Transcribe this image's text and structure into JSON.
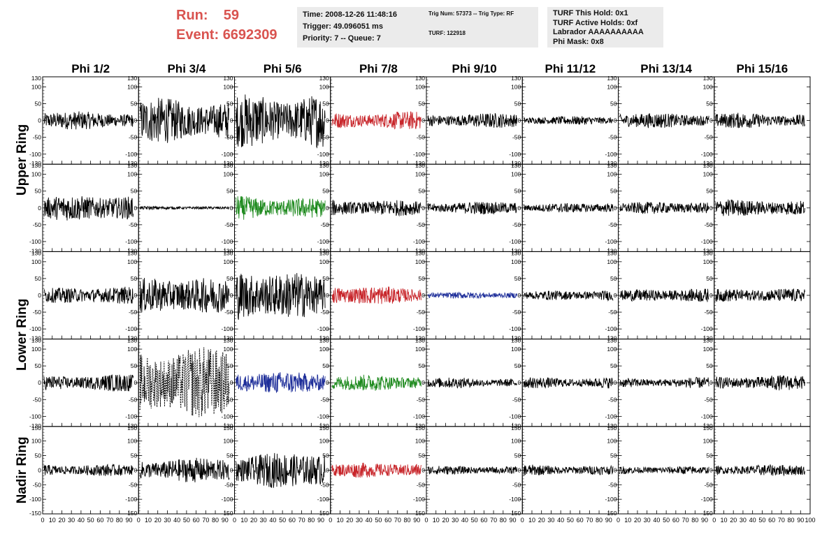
{
  "header": {
    "run_label": "Run:",
    "run_value": "59",
    "event_label": "Event:",
    "event_value": "6692309",
    "header_color": "#d9534f"
  },
  "info_boxes": [
    {
      "lines": [
        "Time: 2008-12-26 11:48:16",
        "Trigger: 49.096051 ms",
        "Priority: 7 -- Queue: 7"
      ]
    },
    {
      "lines": [
        "Trig Num: 57373 -- Trig Type: RF",
        "",
        "TURF: 122918"
      ]
    },
    {
      "lines": [
        "TURF This Hold: 0x1",
        "TURF Active Holds: 0xf",
        "Labrador AAAAAAAAAA",
        "Phi Mask: 0x8"
      ]
    }
  ],
  "chart_data": {
    "type": "line",
    "columns": [
      "Phi 1/2",
      "Phi 3/4",
      "Phi 5/6",
      "Phi 7/8",
      "Phi 9/10",
      "Phi 11/12",
      "Phi 13/14",
      "Phi 15/16"
    ],
    "ring_labels": [
      "Upper Ring",
      "Lower Ring",
      "Nadir Ring"
    ],
    "x_range": [
      0,
      100
    ],
    "x_ticks": [
      "0",
      "10",
      "20",
      "30",
      "40",
      "50",
      "60",
      "70",
      "80",
      "90",
      "100"
    ],
    "y_range_rows_1_4": [
      -130,
      130
    ],
    "y_range_row_5": [
      -150,
      150
    ],
    "y_ticks_rows_1_4": [
      "-100",
      "-50",
      "0",
      "50",
      "100",
      "130",
      "-130"
    ],
    "y_ticks_row_5": [
      "-100",
      "-50",
      "0",
      "50",
      "100",
      "150",
      "-150"
    ],
    "grid": false,
    "colors": {
      "default": "#000000",
      "red": "#c8262b",
      "green": "#1e8a1e",
      "blue": "#1f2f9a"
    },
    "panels": [
      {
        "row": 0,
        "col": 0,
        "amp": 22,
        "color": "default"
      },
      {
        "row": 0,
        "col": 1,
        "amp": 60,
        "color": "default"
      },
      {
        "row": 0,
        "col": 2,
        "amp": 78,
        "color": "default"
      },
      {
        "row": 0,
        "col": 3,
        "amp": 24,
        "color": "red"
      },
      {
        "row": 0,
        "col": 4,
        "amp": 18,
        "color": "default"
      },
      {
        "row": 0,
        "col": 5,
        "amp": 10,
        "color": "default"
      },
      {
        "row": 0,
        "col": 6,
        "amp": 18,
        "color": "default"
      },
      {
        "row": 0,
        "col": 7,
        "amp": 20,
        "color": "default"
      },
      {
        "row": 1,
        "col": 0,
        "amp": 30,
        "color": "default"
      },
      {
        "row": 1,
        "col": 1,
        "amp": 4,
        "color": "default"
      },
      {
        "row": 1,
        "col": 2,
        "amp": 30,
        "color": "green"
      },
      {
        "row": 1,
        "col": 3,
        "amp": 24,
        "color": "default"
      },
      {
        "row": 1,
        "col": 4,
        "amp": 18,
        "color": "default"
      },
      {
        "row": 1,
        "col": 5,
        "amp": 12,
        "color": "default"
      },
      {
        "row": 1,
        "col": 6,
        "amp": 14,
        "color": "default"
      },
      {
        "row": 1,
        "col": 7,
        "amp": 20,
        "color": "default"
      },
      {
        "row": 2,
        "col": 0,
        "amp": 20,
        "color": "default"
      },
      {
        "row": 2,
        "col": 1,
        "amp": 42,
        "color": "default"
      },
      {
        "row": 2,
        "col": 2,
        "amp": 60,
        "color": "default"
      },
      {
        "row": 2,
        "col": 3,
        "amp": 26,
        "color": "red"
      },
      {
        "row": 2,
        "col": 4,
        "amp": 10,
        "color": "blue"
      },
      {
        "row": 2,
        "col": 5,
        "amp": 14,
        "color": "default"
      },
      {
        "row": 2,
        "col": 6,
        "amp": 16,
        "color": "default"
      },
      {
        "row": 2,
        "col": 7,
        "amp": 16,
        "color": "default"
      },
      {
        "row": 3,
        "col": 0,
        "amp": 22,
        "color": "default"
      },
      {
        "row": 3,
        "col": 1,
        "amp": 85,
        "color": "default",
        "dashed": true
      },
      {
        "row": 3,
        "col": 2,
        "amp": 26,
        "color": "blue"
      },
      {
        "row": 3,
        "col": 3,
        "amp": 20,
        "color": "green"
      },
      {
        "row": 3,
        "col": 4,
        "amp": 14,
        "color": "default"
      },
      {
        "row": 3,
        "col": 5,
        "amp": 16,
        "color": "default"
      },
      {
        "row": 3,
        "col": 6,
        "amp": 14,
        "color": "default"
      },
      {
        "row": 3,
        "col": 7,
        "amp": 18,
        "color": "default"
      },
      {
        "row": 4,
        "col": 0,
        "amp": 20,
        "color": "default"
      },
      {
        "row": 4,
        "col": 1,
        "amp": 38,
        "color": "default"
      },
      {
        "row": 4,
        "col": 2,
        "amp": 50,
        "color": "default"
      },
      {
        "row": 4,
        "col": 3,
        "amp": 20,
        "color": "red"
      },
      {
        "row": 4,
        "col": 4,
        "amp": 12,
        "color": "default"
      },
      {
        "row": 4,
        "col": 5,
        "amp": 16,
        "color": "default"
      },
      {
        "row": 4,
        "col": 6,
        "amp": 14,
        "color": "default"
      },
      {
        "row": 4,
        "col": 7,
        "amp": 18,
        "color": "default"
      }
    ]
  }
}
